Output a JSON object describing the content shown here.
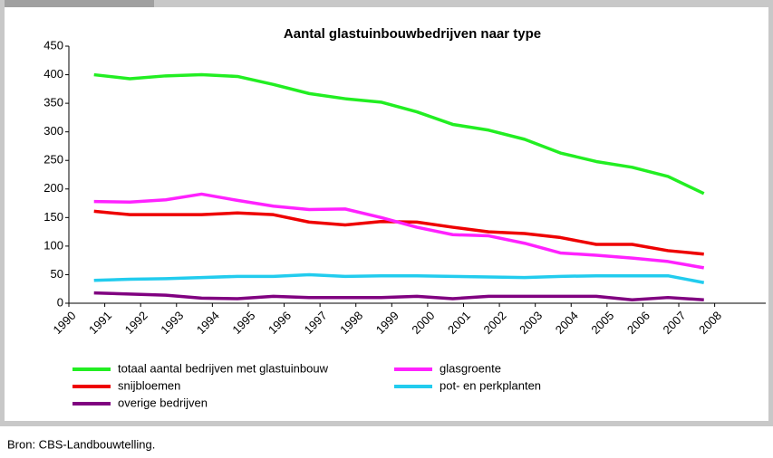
{
  "chart_data": {
    "type": "line",
    "title": "Aantal glastuinbouwbedrijven naar type",
    "x": [
      1990.7,
      1991.7,
      1992.7,
      1993.7,
      1994.7,
      1995.7,
      1996.7,
      1997.7,
      1998.7,
      1999.7,
      2000.7,
      2001.7,
      2002.7,
      2003.7,
      2004.7,
      2005.7,
      2006.7,
      2007.7
    ],
    "xlim": [
      1990,
      2009.5
    ],
    "xticks": [
      1990,
      1991,
      1992,
      1993,
      1994,
      1995,
      1996,
      1997,
      1998,
      1999,
      2000,
      2001,
      2002,
      2003,
      2004,
      2005,
      2006,
      2007,
      2008
    ],
    "ylim": [
      0,
      450
    ],
    "yticks": [
      0,
      50,
      100,
      150,
      200,
      250,
      300,
      350,
      400,
      450
    ],
    "grid": false,
    "legend": "bottom",
    "series": [
      {
        "name": "totaal aantal bedrijven met glastuinbouw",
        "color": "#22ee22",
        "values": [
          400,
          393,
          398,
          400,
          397,
          383,
          367,
          358,
          352,
          335,
          313,
          303,
          287,
          263,
          248,
          238,
          222,
          192
        ]
      },
      {
        "name": "snijbloemen",
        "color": "#ee0000",
        "values": [
          161,
          155,
          155,
          155,
          158,
          155,
          142,
          137,
          143,
          142,
          133,
          125,
          122,
          115,
          103,
          103,
          92,
          86
        ]
      },
      {
        "name": "overige bedrijven",
        "color": "#800080",
        "values": [
          18,
          16,
          14,
          9,
          8,
          12,
          10,
          10,
          10,
          12,
          8,
          12,
          12,
          12,
          12,
          6,
          10,
          6
        ]
      },
      {
        "name": "glasgroente",
        "color": "#ff22ff",
        "values": [
          178,
          177,
          181,
          191,
          180,
          170,
          164,
          165,
          150,
          133,
          120,
          118,
          105,
          88,
          84,
          79,
          73,
          62
        ]
      },
      {
        "name": "pot- en perkplanten",
        "color": "#22ccee",
        "values": [
          40,
          42,
          43,
          45,
          47,
          47,
          50,
          47,
          48,
          48,
          47,
          46,
          45,
          47,
          48,
          48,
          48,
          36
        ]
      }
    ]
  },
  "source": "Bron: CBS-Landbouwtelling."
}
